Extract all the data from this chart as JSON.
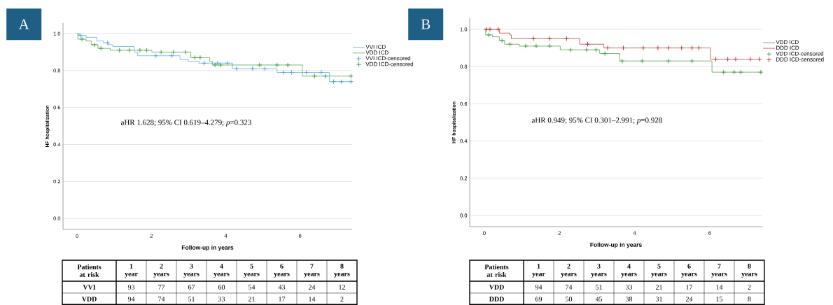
{
  "chart_data": [
    {
      "type": "step",
      "title": "A",
      "xlabel": "Follow-up in years",
      "ylabel": "HF hospitalization",
      "annotations": [
        "aHR 1.628; 95% CI 0.619–4.279; *p*=0.323"
      ],
      "xlim": [
        -0.38,
        7.4
      ],
      "ylim": [
        -0.06,
        1.057
      ],
      "xticks": [
        0,
        2,
        4,
        6
      ],
      "yticks": [
        {
          "value": 0,
          "label": "0.0"
        },
        {
          "value": 0.2,
          "label": "0.2"
        },
        {
          "value": 0.4,
          "label": "0.4"
        },
        {
          "value": 0.6,
          "label": "0.6"
        },
        {
          "value": 0.8,
          "label": "0.8"
        },
        {
          "value": 1,
          "label": "1.0"
        }
      ],
      "grid": "y",
      "legend": "top right",
      "series": [
        {
          "name": "VVI ICD",
          "color": "#4aa3df",
          "x": [
            0,
            0.06,
            0.24,
            0.53,
            0.71,
            0.85,
            0.96,
            1.54,
            1.63,
            2.77,
            2.99,
            3.28,
            4.18,
            5.38,
            6.79,
            7.4
          ],
          "values": [
            1.0,
            0.99,
            0.98,
            0.96,
            0.95,
            0.94,
            0.93,
            0.9,
            0.88,
            0.86,
            0.85,
            0.84,
            0.81,
            0.79,
            0.74,
            0.74
          ]
        },
        {
          "name": "VDD ICD",
          "color": "#3d9a3a",
          "x": [
            0,
            0.02,
            0.24,
            0.38,
            0.56,
            0.89,
            2.01,
            3.06,
            3.57,
            3.64,
            6.06,
            7.4
          ],
          "values": [
            1.0,
            0.97,
            0.96,
            0.94,
            0.92,
            0.91,
            0.9,
            0.87,
            0.85,
            0.83,
            0.77,
            0.77
          ]
        },
        {
          "name": "VVI ICD-censored",
          "color": "#4aa3df",
          "type": "scatter",
          "marker": "cross",
          "x": [
            0.09,
            0.82,
            2.12,
            2.55,
            3.42,
            3.78,
            4.04,
            4.29,
            4.72,
            5.05,
            5.56,
            5.77,
            6.17,
            6.57,
            6.9,
            7.11,
            7.37
          ],
          "values": [
            0.99,
            0.95,
            0.88,
            0.88,
            0.84,
            0.84,
            0.84,
            0.81,
            0.81,
            0.81,
            0.79,
            0.79,
            0.79,
            0.79,
            0.74,
            0.74,
            0.74
          ]
        },
        {
          "name": "VDD ICD-censored",
          "color": "#3d9a3a",
          "type": "scatter",
          "marker": "cross",
          "x": [
            0.13,
            0.46,
            0.64,
            1.14,
            1.4,
            1.69,
            1.87,
            2.26,
            2.59,
            2.92,
            3.17,
            3.31,
            3.71,
            3.86,
            4.91,
            5.38,
            5.67,
            6.39,
            6.68,
            7.37
          ],
          "values": [
            0.97,
            0.94,
            0.92,
            0.91,
            0.91,
            0.91,
            0.91,
            0.9,
            0.9,
            0.9,
            0.87,
            0.87,
            0.83,
            0.83,
            0.83,
            0.83,
            0.83,
            0.77,
            0.77,
            0.77
          ]
        }
      ]
    },
    {
      "type": "step",
      "title": "B",
      "xlabel": "Follow-up in years",
      "ylabel": "HF hospitalization",
      "annotations": [
        "aHR 0.949; 95% CI 0.301–2.991; *p*=0.928"
      ],
      "xlim": [
        -0.39,
        7.4
      ],
      "ylim": [
        -0.06,
        1.06
      ],
      "xticks": [
        0,
        2,
        4,
        6
      ],
      "yticks": [
        {
          "value": 0,
          "label": "0.0"
        },
        {
          "value": 0.2,
          "label": "0.2"
        },
        {
          "value": 0.4,
          "label": "0.4"
        },
        {
          "value": 0.6,
          "label": "0.6"
        },
        {
          "value": 0.8,
          "label": "0.8"
        },
        {
          "value": 1,
          "label": "1.0"
        }
      ],
      "grid": "y",
      "legend": "top right",
      "series": [
        {
          "name": "VDD ICD",
          "color": "#3d9a3a",
          "x": [
            0,
            0.035,
            0.22,
            0.4,
            0.54,
            0.93,
            2.02,
            3.07,
            3.6,
            6.06,
            7.39
          ],
          "values": [
            1.0,
            0.97,
            0.96,
            0.94,
            0.92,
            0.91,
            0.89,
            0.87,
            0.83,
            0.77,
            0.77
          ]
        },
        {
          "name": "DDD ICD",
          "color": "#b22a2a",
          "x": [
            0,
            0.4,
            0.68,
            0.72,
            2.54,
            3.18,
            6.02,
            7.39
          ],
          "values": [
            1.0,
            0.98,
            0.97,
            0.95,
            0.92,
            0.9,
            0.84,
            0.84
          ]
        },
        {
          "name": "VDD ICD-censored",
          "color": "#3d9a3a",
          "type": "scatter",
          "marker": "cross",
          "x": [
            0.12,
            0.47,
            0.68,
            1.1,
            1.38,
            1.74,
            2.3,
            2.72,
            2.97,
            3.21,
            3.67,
            4.2,
            4.9,
            5.53,
            6.37,
            6.65,
            6.83,
            7.36
          ],
          "values": [
            0.97,
            0.94,
            0.92,
            0.91,
            0.91,
            0.91,
            0.89,
            0.89,
            0.89,
            0.87,
            0.83,
            0.83,
            0.83,
            0.83,
            0.77,
            0.77,
            0.77,
            0.77
          ]
        },
        {
          "name": "DDD ICD-censored",
          "color": "#b22a2a",
          "type": "scatter",
          "marker": "cross",
          "x": [
            0.05,
            0.15,
            0.37,
            1.31,
            1.74,
            2.19,
            2.75,
            3.28,
            3.7,
            4.23,
            4.62,
            4.9,
            5.25,
            5.53,
            5.71,
            6.16,
            6.48,
            6.69,
            7.08,
            7.32
          ],
          "values": [
            1.0,
            1.0,
            1.0,
            0.95,
            0.95,
            0.95,
            0.92,
            0.9,
            0.9,
            0.9,
            0.9,
            0.9,
            0.9,
            0.9,
            0.9,
            0.84,
            0.84,
            0.84,
            0.84,
            0.84
          ]
        }
      ]
    },
    {
      "type": "heatmap",
      "title": "Patients at risk",
      "categories": [
        "1 year",
        "2 years",
        "3 years",
        "4 years",
        "5 years",
        "6 years",
        "7 years",
        "8 years"
      ],
      "data_labels": true,
      "y_categories": [
        "VVI",
        "VDD"
      ],
      "cells": [
        [
          93,
          77,
          67,
          60,
          54,
          43,
          24,
          12
        ],
        [
          94,
          74,
          51,
          33,
          21,
          17,
          14,
          2
        ]
      ]
    },
    {
      "type": "heatmap",
      "title": "Patients at risk",
      "categories": [
        "1 year",
        "2 years",
        "3 years",
        "4 years",
        "5 years",
        "6 years",
        "7 years",
        "8 years"
      ],
      "data_labels": true,
      "y_categories": [
        "VDD",
        "DDD"
      ],
      "cells": [
        [
          94,
          74,
          51,
          33,
          21,
          17,
          14,
          2
        ],
        [
          69,
          50,
          45,
          38,
          31,
          24,
          15,
          8
        ]
      ]
    }
  ]
}
